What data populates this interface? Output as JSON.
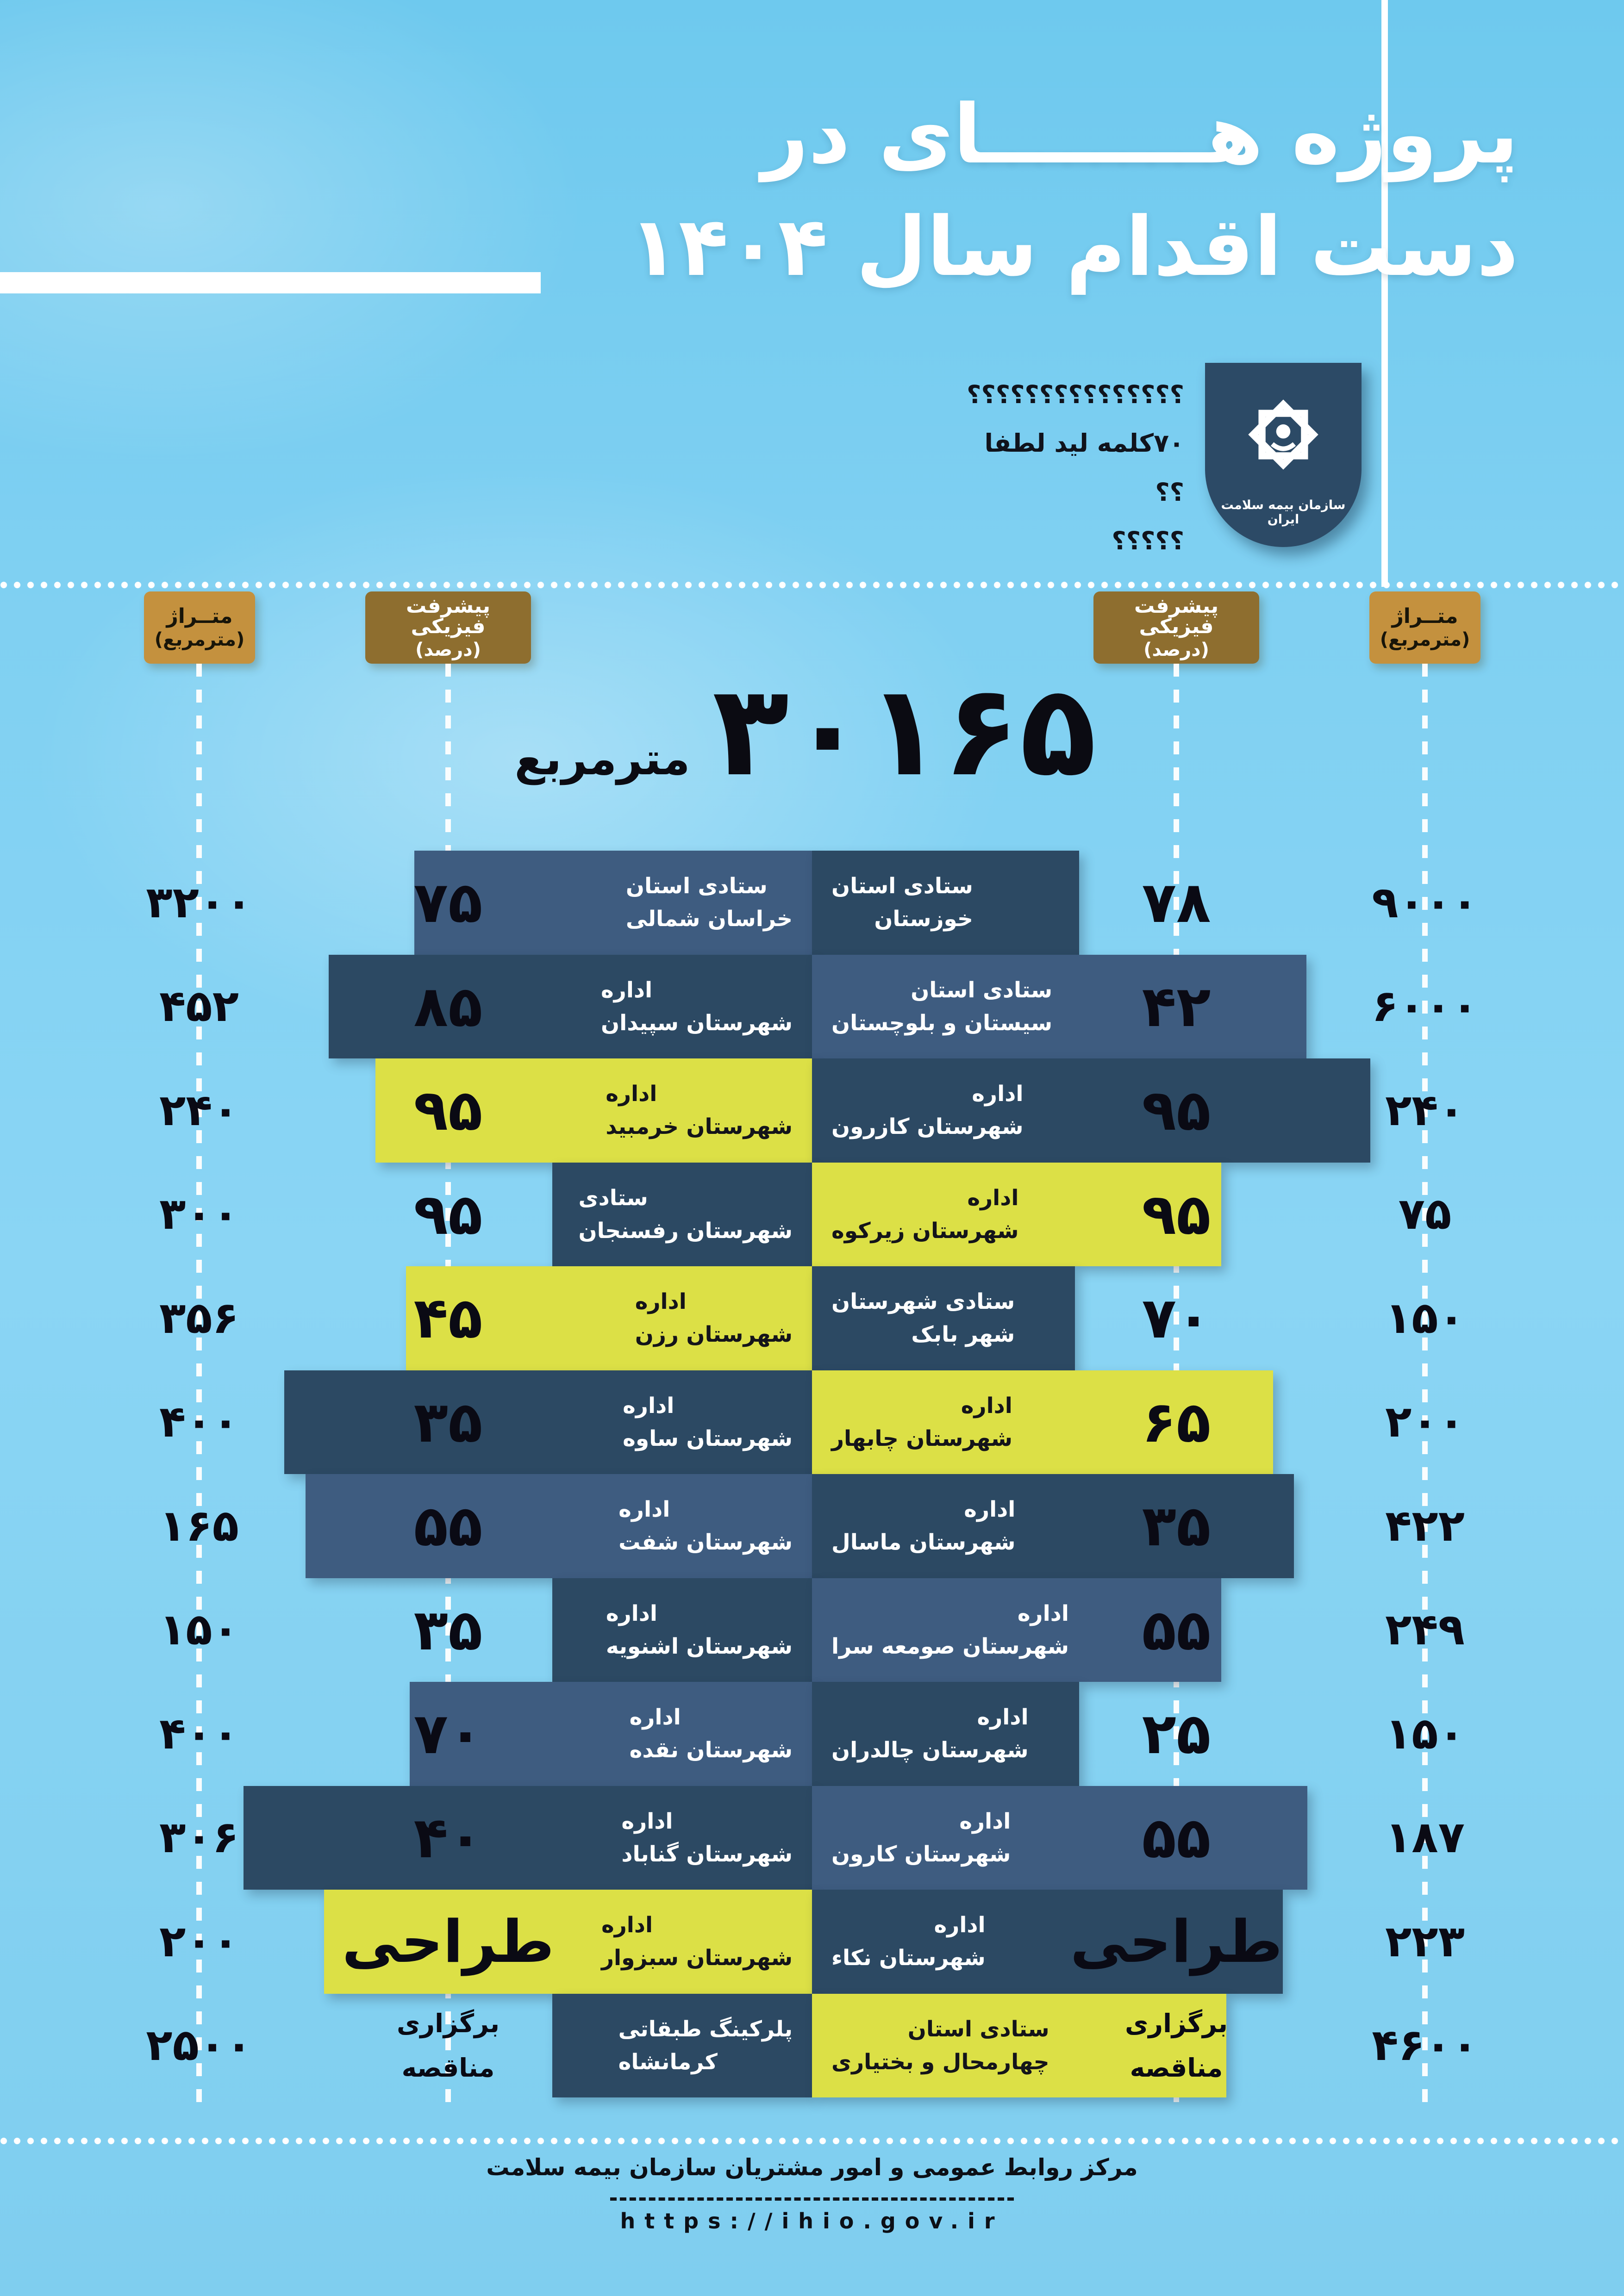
{
  "title": {
    "line1": "پروژه هــــــــای در",
    "line2": "دست اقدام سال ۱۴۰۴"
  },
  "logo": {
    "org_name": "سازمان بیمه سلامت ایران"
  },
  "annotations": {
    "q_line1": "؟؟؟؟؟؟؟؟؟؟؟؟؟؟؟",
    "q_line2": "۷۰کلمه لید لطفا",
    "q_line3": "؟؟",
    "q_line4": "؟؟؟؟؟"
  },
  "headers": {
    "area_label": "متــراژ",
    "area_unit": "(مترمربع)",
    "progress_label": "پیشرفت فیزیکی",
    "progress_unit": "(درصد)"
  },
  "total": {
    "value": "۳۰۱۶۵",
    "unit": "مترمربع",
    "value_latin": 30165
  },
  "footer": {
    "center_name": "مرکز روابط عمومی و امور مشتریان سازمان بیمه سلامت",
    "url": "https://ihio.gov.ir"
  },
  "colors": {
    "background": "#7FD0F2",
    "slate": "#3E5C80",
    "navy": "#2C4963",
    "yellow": "#DCE046",
    "gold_light": "#C4913E",
    "gold_dark": "#8E6E2F",
    "badge_navy": "#2C4A66",
    "text_dark": "#0A0A14",
    "text_light": "#FFFFFF"
  },
  "rows": [
    {
      "left": {
        "line1": "ستادی استان",
        "line2": "خراسان شمالی",
        "value": "۷۵",
        "area": "۳۲۰۰",
        "color": "slate",
        "bar_start": 895
      },
      "right": {
        "line1": "ستادی استان",
        "line2": "خوزستان",
        "value": "۷۸",
        "area": "۹۰۰۰",
        "color": "navy",
        "bar_end": 2331
      }
    },
    {
      "left": {
        "line1": "اداره",
        "line2": "شهرستان سپیدان",
        "value": "۸۵",
        "area": "۴۵۲",
        "color": "navy",
        "bar_start": 710
      },
      "right": {
        "line1": "ستادی استان",
        "line2": "سیستان و بلوچستان",
        "value": "۴۲",
        "area": "۶۰۰۰",
        "color": "slate",
        "bar_end": 2822
      }
    },
    {
      "left": {
        "line1": "اداره",
        "line2": "شهرستان خرمبید",
        "value": "۹۵",
        "area": "۲۴۰",
        "color": "yellow",
        "bar_start": 811
      },
      "right": {
        "line1": "اداره",
        "line2": "شهرستان کازرون",
        "value": "۹۵",
        "area": "۲۴۰",
        "color": "navy",
        "bar_end": 2960
      }
    },
    {
      "left": {
        "line1": "ستادی",
        "line2": "شهرستان رفسنجان",
        "value": "۹۵",
        "area": "۳۰۰",
        "color": "navy",
        "bar_start": 1193
      },
      "right": {
        "line1": "اداره",
        "line2": "شهرستان زیرکوه",
        "value": "۹۵",
        "area": "۷۵",
        "color": "yellow",
        "bar_end": 2638
      }
    },
    {
      "left": {
        "line1": "اداره",
        "line2": "شهرستان رزن",
        "value": "۴۵",
        "area": "۳۵۶",
        "color": "yellow",
        "bar_start": 877
      },
      "right": {
        "line1": "ستادی شهرستان",
        "line2": "شهر بابک",
        "value": "۷۰",
        "area": "۱۵۰",
        "color": "navy",
        "bar_end": 2322
      }
    },
    {
      "left": {
        "line1": "اداره",
        "line2": "شهرستان ساوه",
        "value": "۳۵",
        "area": "۴۰۰",
        "color": "navy",
        "bar_start": 614
      },
      "right": {
        "line1": "اداره",
        "line2": "شهرستان چابهار",
        "value": "۶۵",
        "area": "۲۰۰",
        "color": "yellow",
        "bar_end": 2750
      }
    },
    {
      "left": {
        "line1": "اداره",
        "line2": "شهرستان شفت",
        "value": "۵۵",
        "area": "۱۶۵",
        "color": "slate",
        "bar_start": 660
      },
      "right": {
        "line1": "اداره",
        "line2": "شهرستان ماسال",
        "value": "۳۵",
        "area": "۴۲۲",
        "color": "navy",
        "bar_end": 2795
      }
    },
    {
      "left": {
        "line1": "اداره",
        "line2": "شهرستان اشنویه",
        "value": "۳۵",
        "area": "۱۵۰",
        "color": "navy",
        "bar_start": 1193
      },
      "right": {
        "line1": "اداره",
        "line2": "شهرستان صومعه سرا",
        "value": "۵۵",
        "area": "۲۴۹",
        "color": "slate",
        "bar_end": 2638
      }
    },
    {
      "left": {
        "line1": "اداره",
        "line2": "شهرستان نقده",
        "value": "۷۰",
        "area": "۴۰۰",
        "color": "slate",
        "bar_start": 885
      },
      "right": {
        "line1": "اداره",
        "line2": "شهرستان چالدران",
        "value": "۲۵",
        "area": "۱۵۰",
        "color": "navy",
        "bar_end": 2331
      }
    },
    {
      "left": {
        "line1": "اداره",
        "line2": "شهرستان گناباد",
        "value": "۴۰",
        "area": "۳۰۶",
        "color": "navy",
        "bar_start": 526
      },
      "right": {
        "line1": "اداره",
        "line2": "شهرستان کارون",
        "value": "۵۵",
        "area": "۱۸۷",
        "color": "slate",
        "bar_end": 2824
      }
    },
    {
      "left": {
        "line1": "اداره",
        "line2": "شهرستان سبزوار",
        "value": "طراحی",
        "area": "۲۰۰",
        "color": "yellow",
        "bar_start": 700
      },
      "right": {
        "line1": "اداره",
        "line2": "شهرستان نکاء",
        "value": "طراحی",
        "area": "۲۲۳",
        "color": "navy",
        "bar_end": 2771
      }
    },
    {
      "left": {
        "line1": "پلرکینگ طبقاتی",
        "line2": "کرمانشاه",
        "value": "برگزاری\nمناقصه",
        "area": "۲۵۰۰",
        "color": "navy",
        "bar_start": 1193
      },
      "right": {
        "line1": "ستادی استان",
        "line2": "چهارمحال و بختیاری",
        "value": "برگزاری\nمناقصه",
        "area": "۴۶۰۰",
        "color": "yellow",
        "bar_end": 2649
      }
    }
  ],
  "chart_data": {
    "type": "bar",
    "title": "پروژه های در دست اقدام سال ۱۴۰۴",
    "subtitle_total": "۳۰۱۶۵ مترمربع",
    "total_sqm": 30165,
    "layout": "diverging horizontal bars from center; labels in bars; progress % and area (sqm) columns on both outer sides; legend-free",
    "column_headers": [
      "متراژ (مترمربع)",
      "پیشرفت فیزیکی (درصد)"
    ],
    "series": [
      {
        "name": "left",
        "items": [
          {
            "project": "ستادی استان خراسان شمالی",
            "progress_pct": 75,
            "area_sqm": 3200
          },
          {
            "project": "اداره شهرستان سپیدان",
            "progress_pct": 85,
            "area_sqm": 452
          },
          {
            "project": "اداره شهرستان خرمبید",
            "progress_pct": 95,
            "area_sqm": 240
          },
          {
            "project": "ستادی شهرستان رفسنجان",
            "progress_pct": 95,
            "area_sqm": 300
          },
          {
            "project": "اداره شهرستان رزن",
            "progress_pct": 45,
            "area_sqm": 356
          },
          {
            "project": "اداره شهرستان ساوه",
            "progress_pct": 35,
            "area_sqm": 400
          },
          {
            "project": "اداره شهرستان شفت",
            "progress_pct": 55,
            "area_sqm": 165
          },
          {
            "project": "اداره شهرستان اشنویه",
            "progress_pct": 35,
            "area_sqm": 150
          },
          {
            "project": "اداره شهرستان نقده",
            "progress_pct": 70,
            "area_sqm": 400
          },
          {
            "project": "اداره شهرستان گناباد",
            "progress_pct": 40,
            "area_sqm": 306
          },
          {
            "project": "اداره شهرستان سبزوار",
            "status": "طراحی",
            "area_sqm": 200
          },
          {
            "project": "پلرکینگ طبقاتی کرمانشاه",
            "status": "برگزاری مناقصه",
            "area_sqm": 2500
          }
        ]
      },
      {
        "name": "right",
        "items": [
          {
            "project": "ستادی استان خوزستان",
            "progress_pct": 78,
            "area_sqm": 9000
          },
          {
            "project": "ستادی استان سیستان و بلوچستان",
            "progress_pct": 42,
            "area_sqm": 6000
          },
          {
            "project": "اداره شهرستان کازرون",
            "progress_pct": 95,
            "area_sqm": 240
          },
          {
            "project": "اداره شهرستان زیرکوه",
            "progress_pct": 95,
            "area_sqm": 75
          },
          {
            "project": "ستادی شهرستان شهر بابک",
            "progress_pct": 70,
            "area_sqm": 150
          },
          {
            "project": "اداره شهرستان چابهار",
            "progress_pct": 65,
            "area_sqm": 200
          },
          {
            "project": "اداره شهرستان ماسال",
            "progress_pct": 35,
            "area_sqm": 422
          },
          {
            "project": "اداره شهرستان صومعه سرا",
            "progress_pct": 55,
            "area_sqm": 249
          },
          {
            "project": "اداره شهرستان چالدران",
            "progress_pct": 25,
            "area_sqm": 150
          },
          {
            "project": "اداره شهرستان کارون",
            "progress_pct": 55,
            "area_sqm": 187
          },
          {
            "project": "اداره شهرستان نکاء",
            "status": "طراحی",
            "area_sqm": 223
          },
          {
            "project": "ستادی استان چهارمحال و بختیاری",
            "status": "برگزاری مناقصه",
            "area_sqm": 4600
          }
        ]
      }
    ]
  }
}
